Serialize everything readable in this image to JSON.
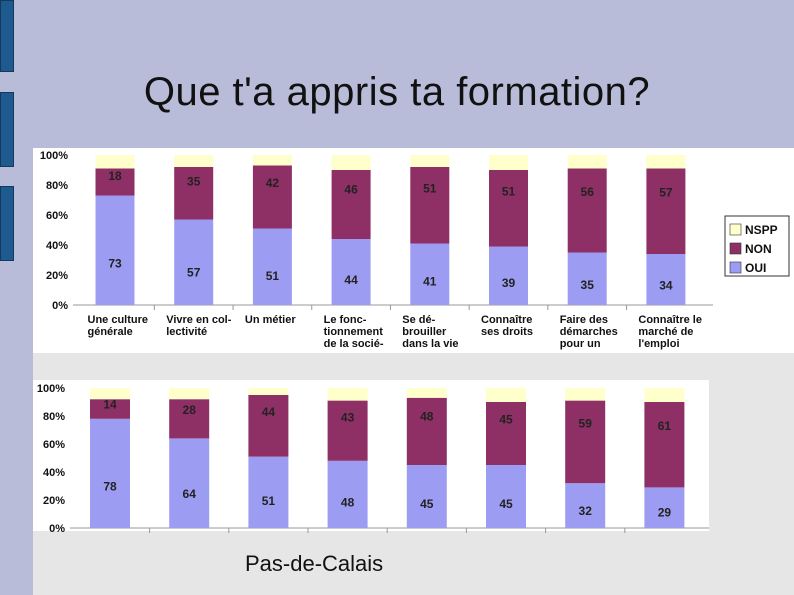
{
  "slide": {
    "title": "Que t'a appris ta formation?",
    "footer": "Pas-de-Calais"
  },
  "colors": {
    "oui": "#9c9cf2",
    "non": "#8e3065",
    "nspp": "#ffffcc",
    "background": "#b8bcd8"
  },
  "chart_data": [
    {
      "type": "bar",
      "stacked": true,
      "categories": [
        [
          "Une culture",
          "générale"
        ],
        [
          "Vivre en col-",
          "lectivité"
        ],
        [
          "Un métier"
        ],
        [
          "Le fonc-",
          "tionnement",
          "de la socié-"
        ],
        [
          "Se dé-",
          "brouiller",
          "dans la vie"
        ],
        [
          "Connaître",
          "ses droits"
        ],
        [
          "Faire des",
          "démarches",
          "pour un"
        ],
        [
          "Connaître le",
          "marché de",
          "l'emploi"
        ]
      ],
      "series": [
        {
          "name": "OUI",
          "values": [
            73,
            57,
            51,
            44,
            41,
            39,
            35,
            34
          ]
        },
        {
          "name": "NON",
          "values": [
            18,
            35,
            42,
            46,
            51,
            51,
            56,
            57
          ]
        },
        {
          "name": "NSPP",
          "values": [
            9,
            8,
            7,
            10,
            8,
            10,
            9,
            9
          ]
        }
      ],
      "yticks": [
        "0%",
        "20%",
        "40%",
        "60%",
        "80%",
        "100%"
      ],
      "ylim": [
        0,
        100
      ],
      "legend": "right",
      "legend_entries": [
        "NSPP",
        "NON",
        "OUI"
      ]
    },
    {
      "type": "bar",
      "stacked": true,
      "categories": [
        "",
        "",
        "",
        "",
        "",
        "",
        "",
        ""
      ],
      "series": [
        {
          "name": "OUI",
          "values": [
            78,
            64,
            51,
            48,
            45,
            45,
            32,
            29
          ]
        },
        {
          "name": "NON",
          "values": [
            14,
            28,
            44,
            43,
            48,
            45,
            59,
            61
          ]
        },
        {
          "name": "NSPP",
          "values": [
            8,
            8,
            5,
            9,
            7,
            10,
            9,
            10
          ]
        }
      ],
      "yticks": [
        "0%",
        "20%",
        "40%",
        "60%",
        "80%",
        "100%"
      ],
      "ylim": [
        0,
        100
      ]
    }
  ]
}
